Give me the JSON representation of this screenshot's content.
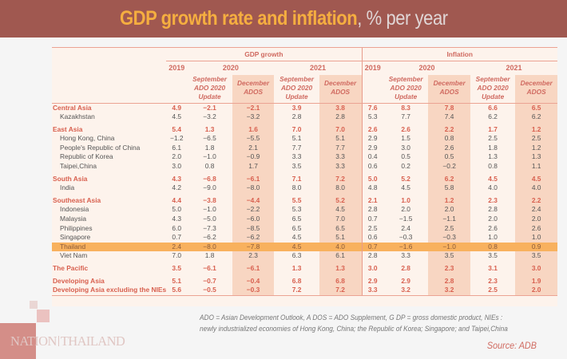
{
  "header": {
    "title_bold": "GDP growth rate and inflation",
    "title_rest": ", % per year"
  },
  "footer": {
    "note_line1": "ADO = Asian Development Outlook, A DOS = ADO Supplement, G DP = gross domestic product, NIEs :",
    "note_line2": "newly industrialized economies of Hong Kong, China; the Republic of Korea; Singapore; and Taipei,China",
    "source": "Source: ADB",
    "logo_left": "NATION",
    "logo_right": "THAILAND"
  },
  "colors": {
    "header_bg": "#a05850",
    "title_accent": "#f5ae40",
    "region_text": "#d8604f",
    "highlight_row": "#f8b15e",
    "shaded_column": "#f8d6c2"
  },
  "chart_data": {
    "type": "table",
    "title": "GDP growth rate and inflation, % per year",
    "groups": [
      "GDP growth",
      "Inflation"
    ],
    "years": [
      "2019",
      "2020",
      "2021"
    ],
    "subcolumns": {
      "sep": "September ADO 2020 Update",
      "sep_lines": [
        "September",
        "ADO 2020",
        "Update"
      ],
      "dec_lines": [
        "December",
        "ADOS"
      ]
    },
    "columns": [
      "2019",
      "2020 September ADO 2020 Update",
      "2020 December ADOS",
      "2021 September ADO 2020 Update",
      "2021 December ADOS"
    ],
    "highlighted_row": "Thailand",
    "rows": [
      {
        "name": "Central Asia",
        "region": true,
        "gdp": [
          "4.9",
          "−2.1",
          "−2.1",
          "3.9",
          "3.8"
        ],
        "inf": [
          "7.6",
          "8.3",
          "7.8",
          "6.6",
          "6.5"
        ]
      },
      {
        "name": "Kazakhstan",
        "region": false,
        "gdp": [
          "4.5",
          "−3.2",
          "−3.2",
          "2.8",
          "2.8"
        ],
        "inf": [
          "5.3",
          "7.7",
          "7.4",
          "6.2",
          "6.2"
        ]
      },
      {
        "name": "East Asia",
        "region": true,
        "gdp": [
          "5.4",
          "1.3",
          "1.6",
          "7.0",
          "7.0"
        ],
        "inf": [
          "2.6",
          "2.6",
          "2.2",
          "1.7",
          "1.2"
        ]
      },
      {
        "name": "Hong Kong, China",
        "region": false,
        "gdp": [
          "−1.2",
          "−6.5",
          "−5.5",
          "5.1",
          "5.1"
        ],
        "inf": [
          "2.9",
          "1.5",
          "0.8",
          "2.5",
          "2.5"
        ]
      },
      {
        "name": "People's Republic of China",
        "region": false,
        "gdp": [
          "6.1",
          "1.8",
          "2.1",
          "7.7",
          "7.7"
        ],
        "inf": [
          "2.9",
          "3.0",
          "2.6",
          "1.8",
          "1.2"
        ]
      },
      {
        "name": "Republic of Korea",
        "region": false,
        "gdp": [
          "2.0",
          "−1.0",
          "−0.9",
          "3.3",
          "3.3"
        ],
        "inf": [
          "0.4",
          "0.5",
          "0.5",
          "1.3",
          "1.3"
        ]
      },
      {
        "name": "Taipei,China",
        "region": false,
        "gdp": [
          "3.0",
          "0.8",
          "1.7",
          "3.5",
          "3.3"
        ],
        "inf": [
          "0.6",
          "0.2",
          "−0.2",
          "0.8",
          "1.1"
        ]
      },
      {
        "name": "South Asia",
        "region": true,
        "gdp": [
          "4.3",
          "−6.8",
          "−6.1",
          "7.1",
          "7.2"
        ],
        "inf": [
          "5.0",
          "5.2",
          "6.2",
          "4.5",
          "4.5"
        ]
      },
      {
        "name": "India",
        "region": false,
        "gdp": [
          "4.2",
          "−9.0",
          "−8.0",
          "8.0",
          "8.0"
        ],
        "inf": [
          "4.8",
          "4.5",
          "5.8",
          "4.0",
          "4.0"
        ]
      },
      {
        "name": "Southeast Asia",
        "region": true,
        "gdp": [
          "4.4",
          "−3.8",
          "−4.4",
          "5.5",
          "5.2"
        ],
        "inf": [
          "2.1",
          "1.0",
          "1.2",
          "2.3",
          "2.2"
        ]
      },
      {
        "name": "Indonesia",
        "region": false,
        "gdp": [
          "5.0",
          "−1.0",
          "−2.2",
          "5.3",
          "4.5"
        ],
        "inf": [
          "2.8",
          "2.0",
          "2.0",
          "2.8",
          "2.4"
        ]
      },
      {
        "name": "Malaysia",
        "region": false,
        "gdp": [
          "4.3",
          "−5.0",
          "−6.0",
          "6.5",
          "7.0"
        ],
        "inf": [
          "0.7",
          "−1.5",
          "−1.1",
          "2.0",
          "2.0"
        ]
      },
      {
        "name": "Philippines",
        "region": false,
        "gdp": [
          "6.0",
          "−7.3",
          "−8.5",
          "6.5",
          "6.5"
        ],
        "inf": [
          "2.5",
          "2.4",
          "2.5",
          "2.6",
          "2.6"
        ]
      },
      {
        "name": "Singapore",
        "region": false,
        "gdp": [
          "0.7",
          "−6.2",
          "−6.2",
          "4.5",
          "5.1"
        ],
        "inf": [
          "0.6",
          "−0.3",
          "−0.3",
          "1.0",
          "1.0"
        ]
      },
      {
        "name": "Thailand",
        "region": false,
        "gdp": [
          "2.4",
          "−8.0",
          "−7.8",
          "4.5",
          "4.0"
        ],
        "inf": [
          "0.7",
          "−1.6",
          "−1.0",
          "0.8",
          "0.9"
        ]
      },
      {
        "name": "Viet Nam",
        "region": false,
        "gdp": [
          "7.0",
          "1.8",
          "2.3",
          "6.3",
          "6.1"
        ],
        "inf": [
          "2.8",
          "3.3",
          "3.5",
          "3.5",
          "3.5"
        ]
      },
      {
        "name": "The Pacific",
        "region": true,
        "gdp": [
          "3.5",
          "−6.1",
          "−6.1",
          "1.3",
          "1.3"
        ],
        "inf": [
          "3.0",
          "2.8",
          "2.3",
          "3.1",
          "3.0"
        ]
      },
      {
        "name": "Developing Asia",
        "region": true,
        "gdp": [
          "5.1",
          "−0.7",
          "−0.4",
          "6.8",
          "6.8"
        ],
        "inf": [
          "2.9",
          "2.9",
          "2.8",
          "2.3",
          "1.9"
        ]
      },
      {
        "name": "Developing Asia excluding the NIEs",
        "region": true,
        "gdp": [
          "5.6",
          "−0.5",
          "−0.3",
          "7.2",
          "7.2"
        ],
        "inf": [
          "3.3",
          "3.2",
          "3.2",
          "2.5",
          "2.0"
        ]
      }
    ]
  }
}
